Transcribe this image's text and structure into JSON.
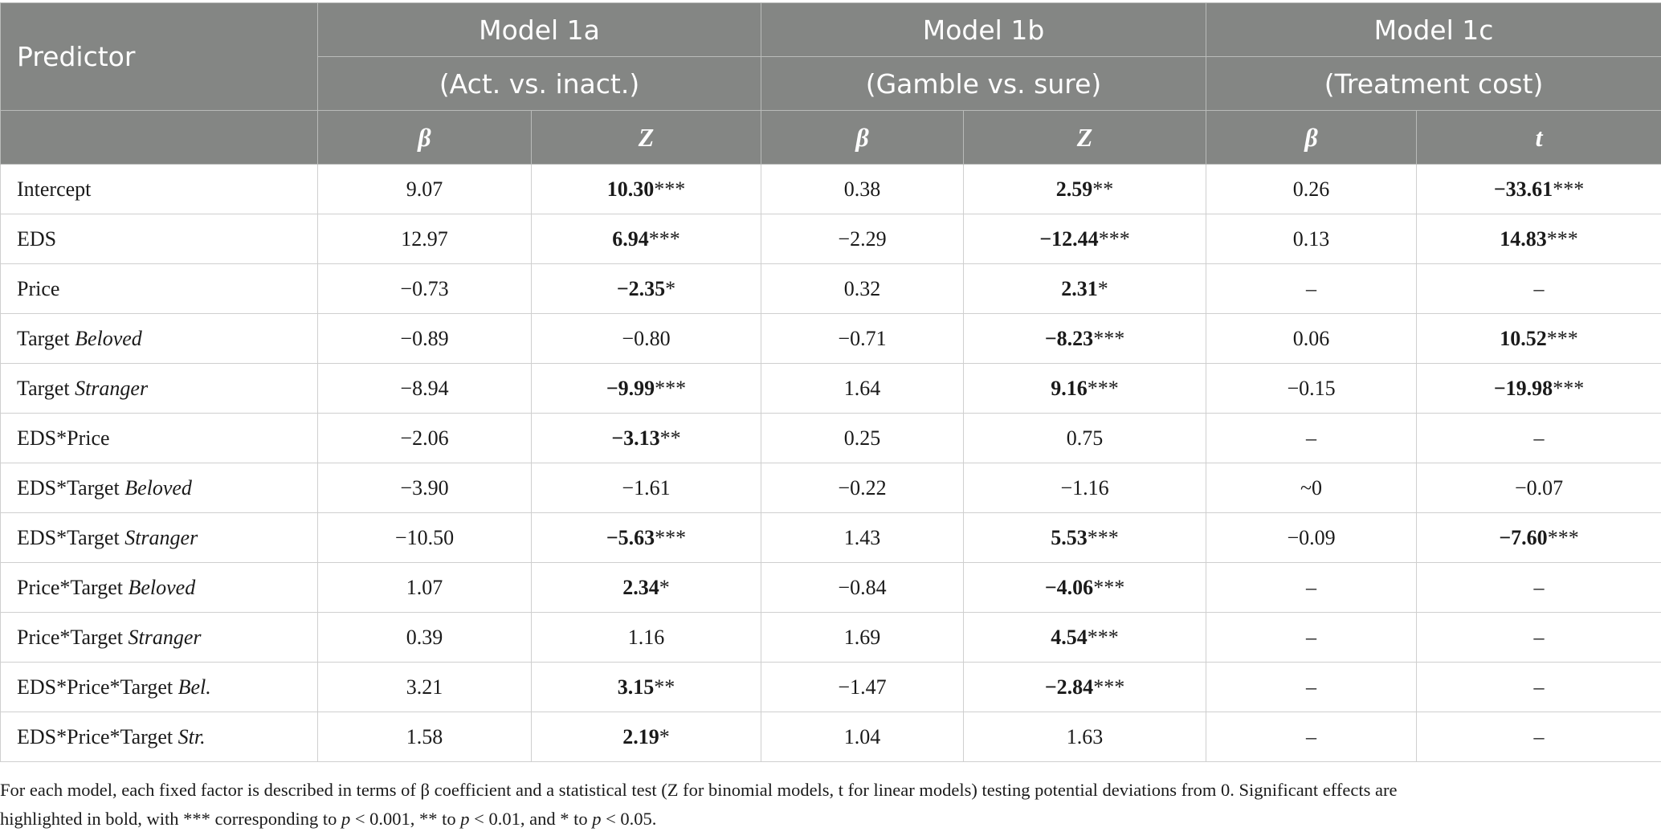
{
  "header": {
    "predictor": "Predictor",
    "models": [
      {
        "name": "Model 1a",
        "desc": "(Act. vs. inact.)",
        "beta": "β",
        "stat": "Z"
      },
      {
        "name": "Model 1b",
        "desc": "(Gamble vs. sure)",
        "beta": "β",
        "stat": "Z"
      },
      {
        "name": "Model 1c",
        "desc": "(Treatment cost)",
        "beta": "β",
        "stat": "t"
      }
    ]
  },
  "rows": [
    {
      "pre": "Intercept",
      "it": "",
      "c": [
        [
          "9.07",
          ""
        ],
        [
          "10.30",
          "***"
        ],
        [
          "0.38",
          ""
        ],
        [
          "2.59",
          "**"
        ],
        [
          "0.26",
          ""
        ],
        [
          "−33.61",
          "***"
        ]
      ]
    },
    {
      "pre": "EDS",
      "it": "",
      "c": [
        [
          "12.97",
          ""
        ],
        [
          "6.94",
          "***"
        ],
        [
          "−2.29",
          ""
        ],
        [
          "−12.44",
          "***"
        ],
        [
          "0.13",
          ""
        ],
        [
          "14.83",
          "***"
        ]
      ]
    },
    {
      "pre": "Price",
      "it": "",
      "c": [
        [
          "−0.73",
          ""
        ],
        [
          "−2.35",
          "*"
        ],
        [
          "0.32",
          ""
        ],
        [
          "2.31",
          "*"
        ],
        [
          "–",
          ""
        ],
        [
          "–",
          ""
        ]
      ]
    },
    {
      "pre": "Target ",
      "it": "Beloved",
      "c": [
        [
          "−0.89",
          ""
        ],
        [
          "−0.80",
          ""
        ],
        [
          "−0.71",
          ""
        ],
        [
          "−8.23",
          "***"
        ],
        [
          "0.06",
          ""
        ],
        [
          "10.52",
          "***"
        ]
      ]
    },
    {
      "pre": "Target ",
      "it": "Stranger",
      "c": [
        [
          "−8.94",
          ""
        ],
        [
          "−9.99",
          "***"
        ],
        [
          "1.64",
          ""
        ],
        [
          "9.16",
          "***"
        ],
        [
          "−0.15",
          ""
        ],
        [
          "−19.98",
          "***"
        ]
      ]
    },
    {
      "pre": "EDS*Price",
      "it": "",
      "c": [
        [
          "−2.06",
          ""
        ],
        [
          "−3.13",
          "**"
        ],
        [
          "0.25",
          ""
        ],
        [
          "0.75",
          ""
        ],
        [
          "–",
          ""
        ],
        [
          "–",
          ""
        ]
      ]
    },
    {
      "pre": "EDS*Target ",
      "it": "Beloved",
      "c": [
        [
          "−3.90",
          ""
        ],
        [
          "−1.61",
          ""
        ],
        [
          "−0.22",
          ""
        ],
        [
          "−1.16",
          ""
        ],
        [
          "~0",
          ""
        ],
        [
          "−0.07",
          ""
        ]
      ]
    },
    {
      "pre": "EDS*Target ",
      "it": "Stranger",
      "c": [
        [
          "−10.50",
          ""
        ],
        [
          "−5.63",
          "***"
        ],
        [
          "1.43",
          ""
        ],
        [
          "5.53",
          "***"
        ],
        [
          "−0.09",
          ""
        ],
        [
          "−7.60",
          "***"
        ]
      ]
    },
    {
      "pre": "Price*Target ",
      "it": "Beloved",
      "c": [
        [
          "1.07",
          ""
        ],
        [
          "2.34",
          "*"
        ],
        [
          "−0.84",
          ""
        ],
        [
          "−4.06",
          "***"
        ],
        [
          "–",
          ""
        ],
        [
          "–",
          ""
        ]
      ]
    },
    {
      "pre": "Price*Target ",
      "it": "Stranger",
      "c": [
        [
          "0.39",
          ""
        ],
        [
          "1.16",
          ""
        ],
        [
          "1.69",
          ""
        ],
        [
          "4.54",
          "***"
        ],
        [
          "–",
          ""
        ],
        [
          "–",
          ""
        ]
      ]
    },
    {
      "pre": "EDS*Price*Target ",
      "it": "Bel.",
      "c": [
        [
          "3.21",
          ""
        ],
        [
          "3.15",
          "**"
        ],
        [
          "−1.47",
          ""
        ],
        [
          "−2.84",
          "***"
        ],
        [
          "–",
          ""
        ],
        [
          "–",
          ""
        ]
      ]
    },
    {
      "pre": "EDS*Price*Target ",
      "it": "Str.",
      "c": [
        [
          "1.58",
          ""
        ],
        [
          "2.19",
          "*"
        ],
        [
          "1.04",
          ""
        ],
        [
          "1.63",
          ""
        ],
        [
          "–",
          ""
        ],
        [
          "–",
          ""
        ]
      ]
    }
  ],
  "note": {
    "line1": "For each model, each fixed factor is described in terms of β coefficient and a statistical test (Z for binomial models, t for linear models) testing potential deviations from 0. Significant effects are",
    "line2_a": "highlighted in bold, with *** corresponding to ",
    "p1": "p",
    "line2_b": " < 0.001, ** to ",
    "p2": "p",
    "line2_c": " < 0.01, and * to ",
    "p3": "p",
    "line2_d": " < 0.05."
  }
}
